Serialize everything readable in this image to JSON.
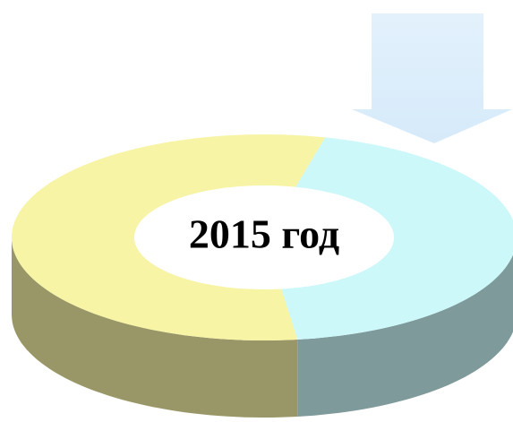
{
  "chart_data": {
    "type": "doughnut",
    "center_text": "2015 год",
    "categories": [
      null,
      null
    ],
    "values": [
      44,
      56
    ],
    "colors": [
      "#ccf8fa",
      "#f7f4a6"
    ],
    "start_angle": 14
  }
}
